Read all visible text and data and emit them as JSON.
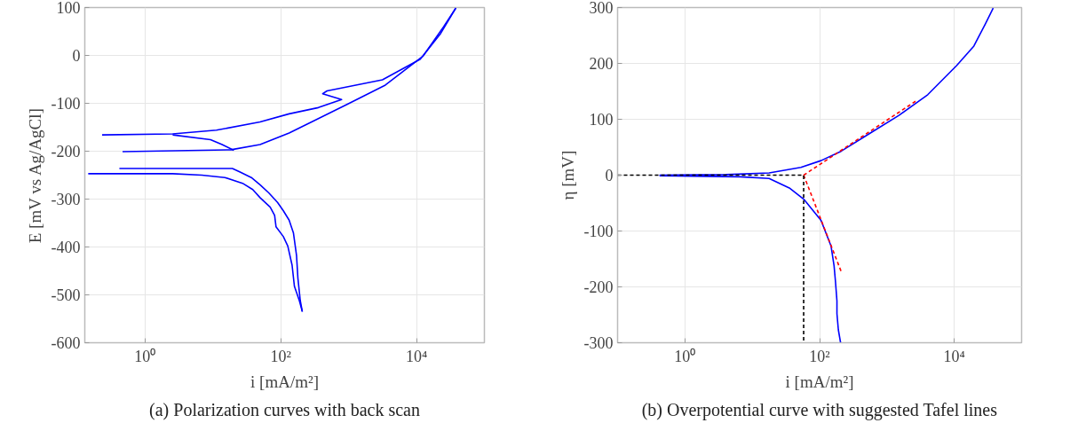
{
  "chart_data": [
    {
      "type": "line",
      "title": "(a) Polarization curves with back scan",
      "xlabel": "i [mA/m²]",
      "ylabel": "E [mV vs Ag/AgCl]",
      "log": "x",
      "grid": true,
      "line_style": "solid",
      "xlim": [
        0.13,
        100000
      ],
      "ylim": [
        -600,
        100
      ],
      "xticks": [
        {
          "value": 1,
          "label": "10⁰"
        },
        {
          "value": 100,
          "label": "10²"
        },
        {
          "value": 10000,
          "label": "10⁴"
        }
      ],
      "yticks": [
        -600,
        -500,
        -400,
        -300,
        -200,
        -100,
        0,
        100
      ],
      "series": [
        {
          "color": "#0000ff",
          "x": [
            0.146,
            2.56,
            6.9,
            15.1,
            27.4,
            38.7,
            49.6,
            70,
            81.3,
            85.3,
            109,
            127,
            147,
            159,
            188,
            208
          ],
          "values": [
            -247,
            -247,
            -250,
            -255,
            -267,
            -280,
            -297,
            -317,
            -334,
            -358,
            -378,
            -398,
            -438,
            -482,
            -512,
            -535
          ]
        },
        {
          "color": "#0000ff",
          "x": [
            0.42,
            19.4,
            24.8,
            36.9,
            49.6,
            66.7,
            89.7,
            109,
            133,
            154,
            171,
            179,
            194,
            208
          ],
          "values": [
            -236,
            -236,
            -243,
            -255,
            -270,
            -287,
            -307,
            -324,
            -344,
            -371,
            -418,
            -465,
            -512,
            -535
          ]
        },
        {
          "color": "#0000ff",
          "x": [
            0.234,
            2.56,
            11.3,
            49.6,
            133,
            358,
            789,
            415,
            481,
            3148,
            11370,
            22700,
            37960
          ],
          "values": [
            -166,
            -164,
            -156,
            -139,
            -122,
            -109,
            -92,
            -80,
            -74,
            -51,
            -8,
            46,
            99
          ]
        },
        {
          "color": "#0000ff",
          "x": [
            0.468,
            18.5,
            49.6,
            133,
            358,
            961,
            3475,
            12560,
            25060,
            37960
          ],
          "values": [
            -201,
            -197,
            -186,
            -162,
            -132,
            -102,
            -62,
            -1,
            60,
            99
          ]
        },
        {
          "color": "#0000ff",
          "x": [
            2.56,
            9.24,
            13.7,
            20.4
          ],
          "values": [
            -166,
            -176,
            -186,
            -198
          ]
        }
      ]
    },
    {
      "type": "line",
      "title": "(b) Overpotential curve with suggested Tafel lines",
      "xlabel": "i [mA/m²]",
      "ylabel": "η [mV]",
      "log": "x",
      "grid": true,
      "xlim": [
        0.1,
        100000
      ],
      "ylim": [
        -300,
        300
      ],
      "xticks": [
        {
          "value": 1,
          "label": "10⁰"
        },
        {
          "value": 100,
          "label": "10²"
        },
        {
          "value": 10000,
          "label": "10⁴"
        }
      ],
      "yticks": [
        -300,
        -200,
        -100,
        0,
        100,
        200,
        300
      ],
      "series": [
        {
          "color": "#0000ff",
          "line_style": "solid",
          "x": [
            0.42,
            4.06,
            17.8,
            52.7,
            105,
            210,
            561,
            1506,
            4036,
            10820,
            19550,
            29000,
            37860
          ],
          "values": [
            0,
            1,
            4,
            14,
            26,
            43,
            75,
            107,
            144,
            196,
            231,
            271,
            299
          ]
        },
        {
          "color": "#0000ff",
          "line_style": "solid",
          "x": [
            0.42,
            6.64,
            17.8,
            35.5,
            58.1,
            105,
            148,
            164,
            172,
            181,
            181,
            190,
            205
          ],
          "values": [
            -1,
            -3,
            -6,
            -23,
            -43,
            -81,
            -127,
            -162,
            -190,
            -225,
            -248,
            -277,
            -300
          ]
        },
        {
          "color": "#ff0000",
          "line_style": "dashed",
          "x": [
            58,
            2720
          ],
          "values": [
            0,
            133
          ]
        },
        {
          "color": "#ff0000",
          "line_style": "dashed",
          "x": [
            58,
            210
          ],
          "values": [
            0,
            -173
          ]
        },
        {
          "color": "#000000",
          "line_style": "dashed",
          "x": [
            0.1,
            58,
            58
          ],
          "values": [
            0,
            0,
            -300
          ]
        }
      ]
    }
  ]
}
